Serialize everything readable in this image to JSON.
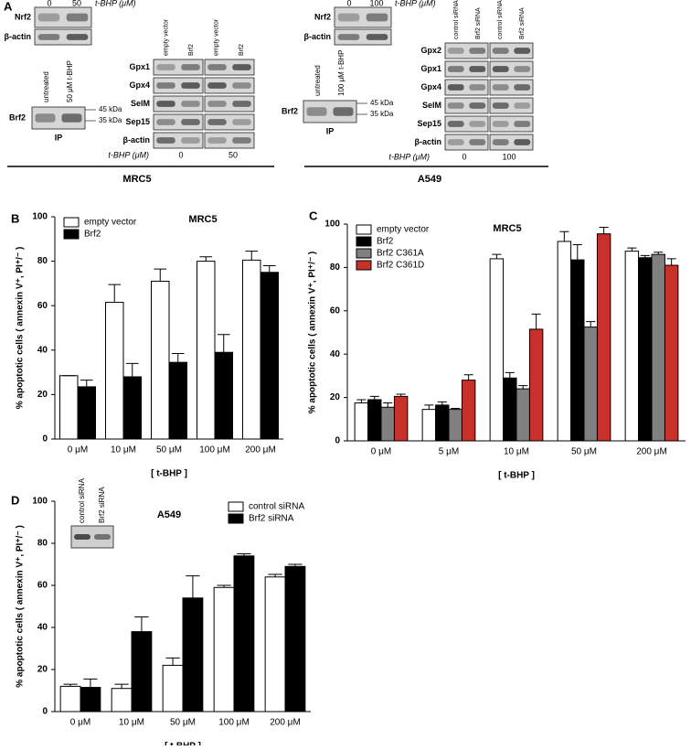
{
  "panel_a": {
    "label": "A",
    "mrc5": {
      "name": "MRC5",
      "nrf2_blot": {
        "rows": [
          "Nrf2",
          "β-actin"
        ],
        "concs": [
          "0",
          "50"
        ],
        "unit": "t-BHP (μM)"
      },
      "ip_blot": {
        "row": "Brf2",
        "lanes": [
          "untreated",
          "50 μM t-BHP"
        ],
        "markers": [
          "45 kDa",
          "35 kDa"
        ],
        "caption": "IP"
      },
      "panel_blot": {
        "lanes": [
          "empty vector",
          "Brf2",
          "empty vector",
          "Brf2"
        ],
        "rows": [
          "Gpx1",
          "Gpx4",
          "SelM",
          "Sep15",
          "β-actin"
        ],
        "unit": "t-BHP (μM)",
        "concs": [
          "0",
          "50"
        ]
      }
    },
    "a549": {
      "name": "A549",
      "nrf2_blot": {
        "rows": [
          "Nrf2",
          "β-actin"
        ],
        "concs": [
          "0",
          "100"
        ],
        "unit": "t-BHP (μM)"
      },
      "ip_blot": {
        "row": "Brf2",
        "lanes": [
          "untreated",
          "100 μM t-BHP"
        ],
        "markers": [
          "45 kDa",
          "35 kDa"
        ],
        "caption": "IP"
      },
      "panel_blot": {
        "lanes": [
          "control siRNA",
          "Brf2 siRNA",
          "control siRNA",
          "Brf2 siRNA"
        ],
        "rows": [
          "Gpx2",
          "Gpx1",
          "Gpx4",
          "SelM",
          "Sep15",
          "β-actin"
        ],
        "unit": "t-BHP (μM)",
        "concs": [
          "0",
          "100"
        ]
      }
    }
  },
  "chart_data": [
    {
      "type": "bar",
      "panel_label": "B",
      "title": "MRC5",
      "categories": [
        "0 μM",
        "10 μM",
        "50 μM",
        "100 μM",
        "200 μM"
      ],
      "series": [
        {
          "name": "empty vector",
          "color": "#ffffff",
          "values": [
            28.5,
            61.5,
            71,
            80,
            80.5
          ],
          "errors": [
            0,
            8,
            5.5,
            2,
            4
          ]
        },
        {
          "name": "Brf2",
          "color": "#000000",
          "values": [
            23.5,
            28,
            34.5,
            39,
            75
          ],
          "errors": [
            3,
            6,
            4,
            8,
            3
          ]
        }
      ],
      "ylim": [
        0,
        100
      ],
      "yticks": [
        0,
        20,
        40,
        60,
        80,
        100
      ],
      "legend": "upper left",
      "xlabel": "[ t-BHP ]",
      "ylabel": "% apoptotic cells ( annexin V⁺, PI⁺/⁻ )"
    },
    {
      "type": "bar",
      "panel_label": "C",
      "title": "MRC5",
      "categories": [
        "0 μM",
        "5 μM",
        "10 μM",
        "50 μM",
        "200 μM"
      ],
      "series": [
        {
          "name": "empty vector",
          "color": "#ffffff",
          "values": [
            17.5,
            14.5,
            84,
            92,
            87.5
          ],
          "errors": [
            1.5,
            2,
            2,
            4.5,
            1.5
          ]
        },
        {
          "name": "Brf2",
          "color": "#000000",
          "values": [
            19,
            16.5,
            29,
            83.5,
            84.5
          ],
          "errors": [
            1.5,
            1.5,
            2.5,
            7,
            1
          ]
        },
        {
          "name": "Brf2 C361A",
          "color": "#808080",
          "values": [
            15.5,
            14.5,
            24,
            52.5,
            86
          ],
          "errors": [
            2,
            0.5,
            1.5,
            2.5,
            1
          ]
        },
        {
          "name": "Brf2 C361D",
          "color": "#c8302a",
          "values": [
            20.5,
            28,
            51.5,
            95.5,
            81
          ],
          "errors": [
            1,
            2.5,
            7,
            3,
            3
          ]
        }
      ],
      "ylim": [
        0,
        100
      ],
      "yticks": [
        0,
        20,
        40,
        60,
        80,
        100
      ],
      "legend": "upper left",
      "xlabel": "[ t-BHP ]",
      "ylabel": "% apoptotic cells ( annexin V⁺, PI⁺/⁻ )"
    },
    {
      "type": "bar",
      "panel_label": "D",
      "title": "A549",
      "categories": [
        "0 μM",
        "10 μM",
        "50 μM",
        "100 μM",
        "200 μM"
      ],
      "series": [
        {
          "name": "control siRNA",
          "color": "#ffffff",
          "values": [
            12,
            11,
            22,
            59,
            64
          ],
          "errors": [
            1,
            2,
            3.5,
            1,
            1.2
          ]
        },
        {
          "name": "Brf2 siRNA",
          "color": "#000000",
          "values": [
            11.5,
            38,
            54,
            74,
            69
          ],
          "errors": [
            4,
            7,
            10.5,
            1,
            1
          ]
        }
      ],
      "ylim": [
        0,
        100
      ],
      "yticks": [
        0,
        20,
        40,
        60,
        80,
        100
      ],
      "legend": "upper right",
      "xlabel": "[ t-BHP ]",
      "ylabel": "% apoptotic cells ( annexin V⁺, PI⁺/⁻ )",
      "inset_blot": {
        "lanes": [
          "control siRNA",
          "Brf2 siRNA"
        ]
      }
    }
  ]
}
